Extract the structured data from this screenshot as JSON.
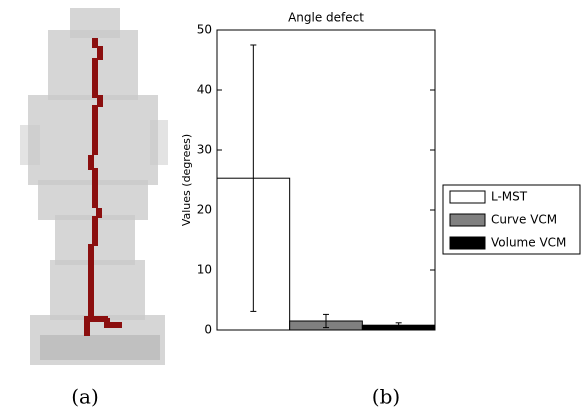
{
  "chart_data": {
    "type": "bar",
    "title": "Angle defect",
    "y_label": "Values (degrees)",
    "ylim": [
      0,
      50
    ],
    "yticks": [
      0,
      10,
      20,
      30,
      40,
      50
    ],
    "series": [
      {
        "name": "L-MST",
        "color": "#ffffff",
        "values": [
          25.3
        ],
        "errors": [
          22.2
        ]
      },
      {
        "name": "Curve VCM",
        "color": "#808080",
        "values": [
          1.5
        ],
        "errors": [
          1.1
        ]
      },
      {
        "name": "Volume VCM",
        "color": "#000000",
        "values": [
          0.8
        ],
        "errors": [
          0.4
        ]
      }
    ]
  },
  "captions": [
    "(a)",
    "(b)"
  ]
}
